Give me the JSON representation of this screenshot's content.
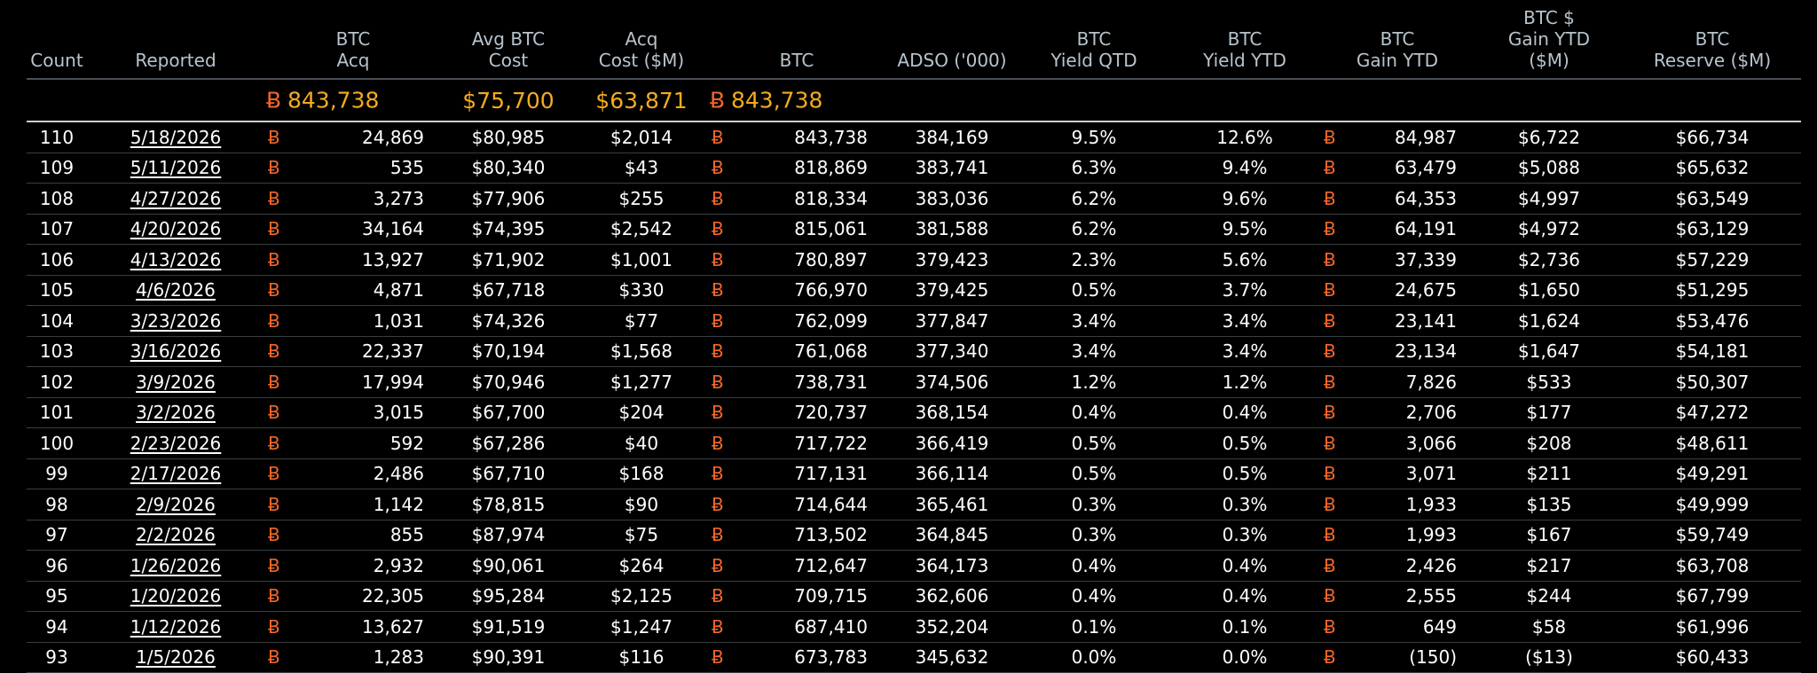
{
  "colors": {
    "background": "#000000",
    "header_text": "#b8c4cc",
    "totals_text": "#f5ab1e",
    "btc_symbol": "#f2662a",
    "row_text": "#ffffff"
  },
  "icons": {
    "btc": "bitcoin-symbol-icon"
  },
  "btc_symbol": "Ƀ",
  "headers": {
    "count": "Count",
    "reported": "Reported",
    "btc_acq": "BTC\nAcq",
    "avg_btc_cost": "Avg BTC\nCost",
    "acq_cost": "Acq\nCost ($M)",
    "btc": "BTC",
    "adso": "ADSO ('000)",
    "yield_qtd": "BTC\nYield QTD",
    "yield_ytd": "BTC\nYield YTD",
    "gain_ytd": "BTC\nGain YTD",
    "gain_usd_ytd": "BTC $\nGain YTD\n($M)",
    "reserve": "BTC\nReserve ($M)"
  },
  "totals": {
    "btc_acq": "843,738",
    "avg_btc_cost": "$75,700",
    "acq_cost": "$63,871",
    "btc": "843,738"
  },
  "rows": [
    {
      "count": "110",
      "reported": "5/18/2026",
      "btc_acq": "24,869",
      "avg_cost": "$80,985",
      "acq_cost": "$2,014",
      "btc": "843,738",
      "adso": "384,169",
      "yield_qtd": "9.5%",
      "yield_ytd": "12.6%",
      "gain_ytd": "84,987",
      "gain_usd": "$6,722",
      "reserve": "$66,734"
    },
    {
      "count": "109",
      "reported": "5/11/2026",
      "btc_acq": "535",
      "avg_cost": "$80,340",
      "acq_cost": "$43",
      "btc": "818,869",
      "adso": "383,741",
      "yield_qtd": "6.3%",
      "yield_ytd": "9.4%",
      "gain_ytd": "63,479",
      "gain_usd": "$5,088",
      "reserve": "$65,632"
    },
    {
      "count": "108",
      "reported": "4/27/2026",
      "btc_acq": "3,273",
      "avg_cost": "$77,906",
      "acq_cost": "$255",
      "btc": "818,334",
      "adso": "383,036",
      "yield_qtd": "6.2%",
      "yield_ytd": "9.6%",
      "gain_ytd": "64,353",
      "gain_usd": "$4,997",
      "reserve": "$63,549"
    },
    {
      "count": "107",
      "reported": "4/20/2026",
      "btc_acq": "34,164",
      "avg_cost": "$74,395",
      "acq_cost": "$2,542",
      "btc": "815,061",
      "adso": "381,588",
      "yield_qtd": "6.2%",
      "yield_ytd": "9.5%",
      "gain_ytd": "64,191",
      "gain_usd": "$4,972",
      "reserve": "$63,129"
    },
    {
      "count": "106",
      "reported": "4/13/2026",
      "btc_acq": "13,927",
      "avg_cost": "$71,902",
      "acq_cost": "$1,001",
      "btc": "780,897",
      "adso": "379,423",
      "yield_qtd": "2.3%",
      "yield_ytd": "5.6%",
      "gain_ytd": "37,339",
      "gain_usd": "$2,736",
      "reserve": "$57,229"
    },
    {
      "count": "105",
      "reported": "4/6/2026",
      "btc_acq": "4,871",
      "avg_cost": "$67,718",
      "acq_cost": "$330",
      "btc": "766,970",
      "adso": "379,425",
      "yield_qtd": "0.5%",
      "yield_ytd": "3.7%",
      "gain_ytd": "24,675",
      "gain_usd": "$1,650",
      "reserve": "$51,295"
    },
    {
      "count": "104",
      "reported": "3/23/2026",
      "btc_acq": "1,031",
      "avg_cost": "$74,326",
      "acq_cost": "$77",
      "btc": "762,099",
      "adso": "377,847",
      "yield_qtd": "3.4%",
      "yield_ytd": "3.4%",
      "gain_ytd": "23,141",
      "gain_usd": "$1,624",
      "reserve": "$53,476"
    },
    {
      "count": "103",
      "reported": "3/16/2026",
      "btc_acq": "22,337",
      "avg_cost": "$70,194",
      "acq_cost": "$1,568",
      "btc": "761,068",
      "adso": "377,340",
      "yield_qtd": "3.4%",
      "yield_ytd": "3.4%",
      "gain_ytd": "23,134",
      "gain_usd": "$1,647",
      "reserve": "$54,181"
    },
    {
      "count": "102",
      "reported": "3/9/2026",
      "btc_acq": "17,994",
      "avg_cost": "$70,946",
      "acq_cost": "$1,277",
      "btc": "738,731",
      "adso": "374,506",
      "yield_qtd": "1.2%",
      "yield_ytd": "1.2%",
      "gain_ytd": "7,826",
      "gain_usd": "$533",
      "reserve": "$50,307"
    },
    {
      "count": "101",
      "reported": "3/2/2026",
      "btc_acq": "3,015",
      "avg_cost": "$67,700",
      "acq_cost": "$204",
      "btc": "720,737",
      "adso": "368,154",
      "yield_qtd": "0.4%",
      "yield_ytd": "0.4%",
      "gain_ytd": "2,706",
      "gain_usd": "$177",
      "reserve": "$47,272"
    },
    {
      "count": "100",
      "reported": "2/23/2026",
      "btc_acq": "592",
      "avg_cost": "$67,286",
      "acq_cost": "$40",
      "btc": "717,722",
      "adso": "366,419",
      "yield_qtd": "0.5%",
      "yield_ytd": "0.5%",
      "gain_ytd": "3,066",
      "gain_usd": "$208",
      "reserve": "$48,611"
    },
    {
      "count": "99",
      "reported": "2/17/2026",
      "btc_acq": "2,486",
      "avg_cost": "$67,710",
      "acq_cost": "$168",
      "btc": "717,131",
      "adso": "366,114",
      "yield_qtd": "0.5%",
      "yield_ytd": "0.5%",
      "gain_ytd": "3,071",
      "gain_usd": "$211",
      "reserve": "$49,291"
    },
    {
      "count": "98",
      "reported": "2/9/2026",
      "btc_acq": "1,142",
      "avg_cost": "$78,815",
      "acq_cost": "$90",
      "btc": "714,644",
      "adso": "365,461",
      "yield_qtd": "0.3%",
      "yield_ytd": "0.3%",
      "gain_ytd": "1,933",
      "gain_usd": "$135",
      "reserve": "$49,999"
    },
    {
      "count": "97",
      "reported": "2/2/2026",
      "btc_acq": "855",
      "avg_cost": "$87,974",
      "acq_cost": "$75",
      "btc": "713,502",
      "adso": "364,845",
      "yield_qtd": "0.3%",
      "yield_ytd": "0.3%",
      "gain_ytd": "1,993",
      "gain_usd": "$167",
      "reserve": "$59,749"
    },
    {
      "count": "96",
      "reported": "1/26/2026",
      "btc_acq": "2,932",
      "avg_cost": "$90,061",
      "acq_cost": "$264",
      "btc": "712,647",
      "adso": "364,173",
      "yield_qtd": "0.4%",
      "yield_ytd": "0.4%",
      "gain_ytd": "2,426",
      "gain_usd": "$217",
      "reserve": "$63,708"
    },
    {
      "count": "95",
      "reported": "1/20/2026",
      "btc_acq": "22,305",
      "avg_cost": "$95,284",
      "acq_cost": "$2,125",
      "btc": "709,715",
      "adso": "362,606",
      "yield_qtd": "0.4%",
      "yield_ytd": "0.4%",
      "gain_ytd": "2,555",
      "gain_usd": "$244",
      "reserve": "$67,799"
    },
    {
      "count": "94",
      "reported": "1/12/2026",
      "btc_acq": "13,627",
      "avg_cost": "$91,519",
      "acq_cost": "$1,247",
      "btc": "687,410",
      "adso": "352,204",
      "yield_qtd": "0.1%",
      "yield_ytd": "0.1%",
      "gain_ytd": "649",
      "gain_usd": "$58",
      "reserve": "$61,996"
    },
    {
      "count": "93",
      "reported": "1/5/2026",
      "btc_acq": "1,283",
      "avg_cost": "$90,391",
      "acq_cost": "$116",
      "btc": "673,783",
      "adso": "345,632",
      "yield_qtd": "0.0%",
      "yield_ytd": "0.0%",
      "gain_ytd": "(150)",
      "gain_usd": "($13)",
      "reserve": "$60,433"
    }
  ]
}
